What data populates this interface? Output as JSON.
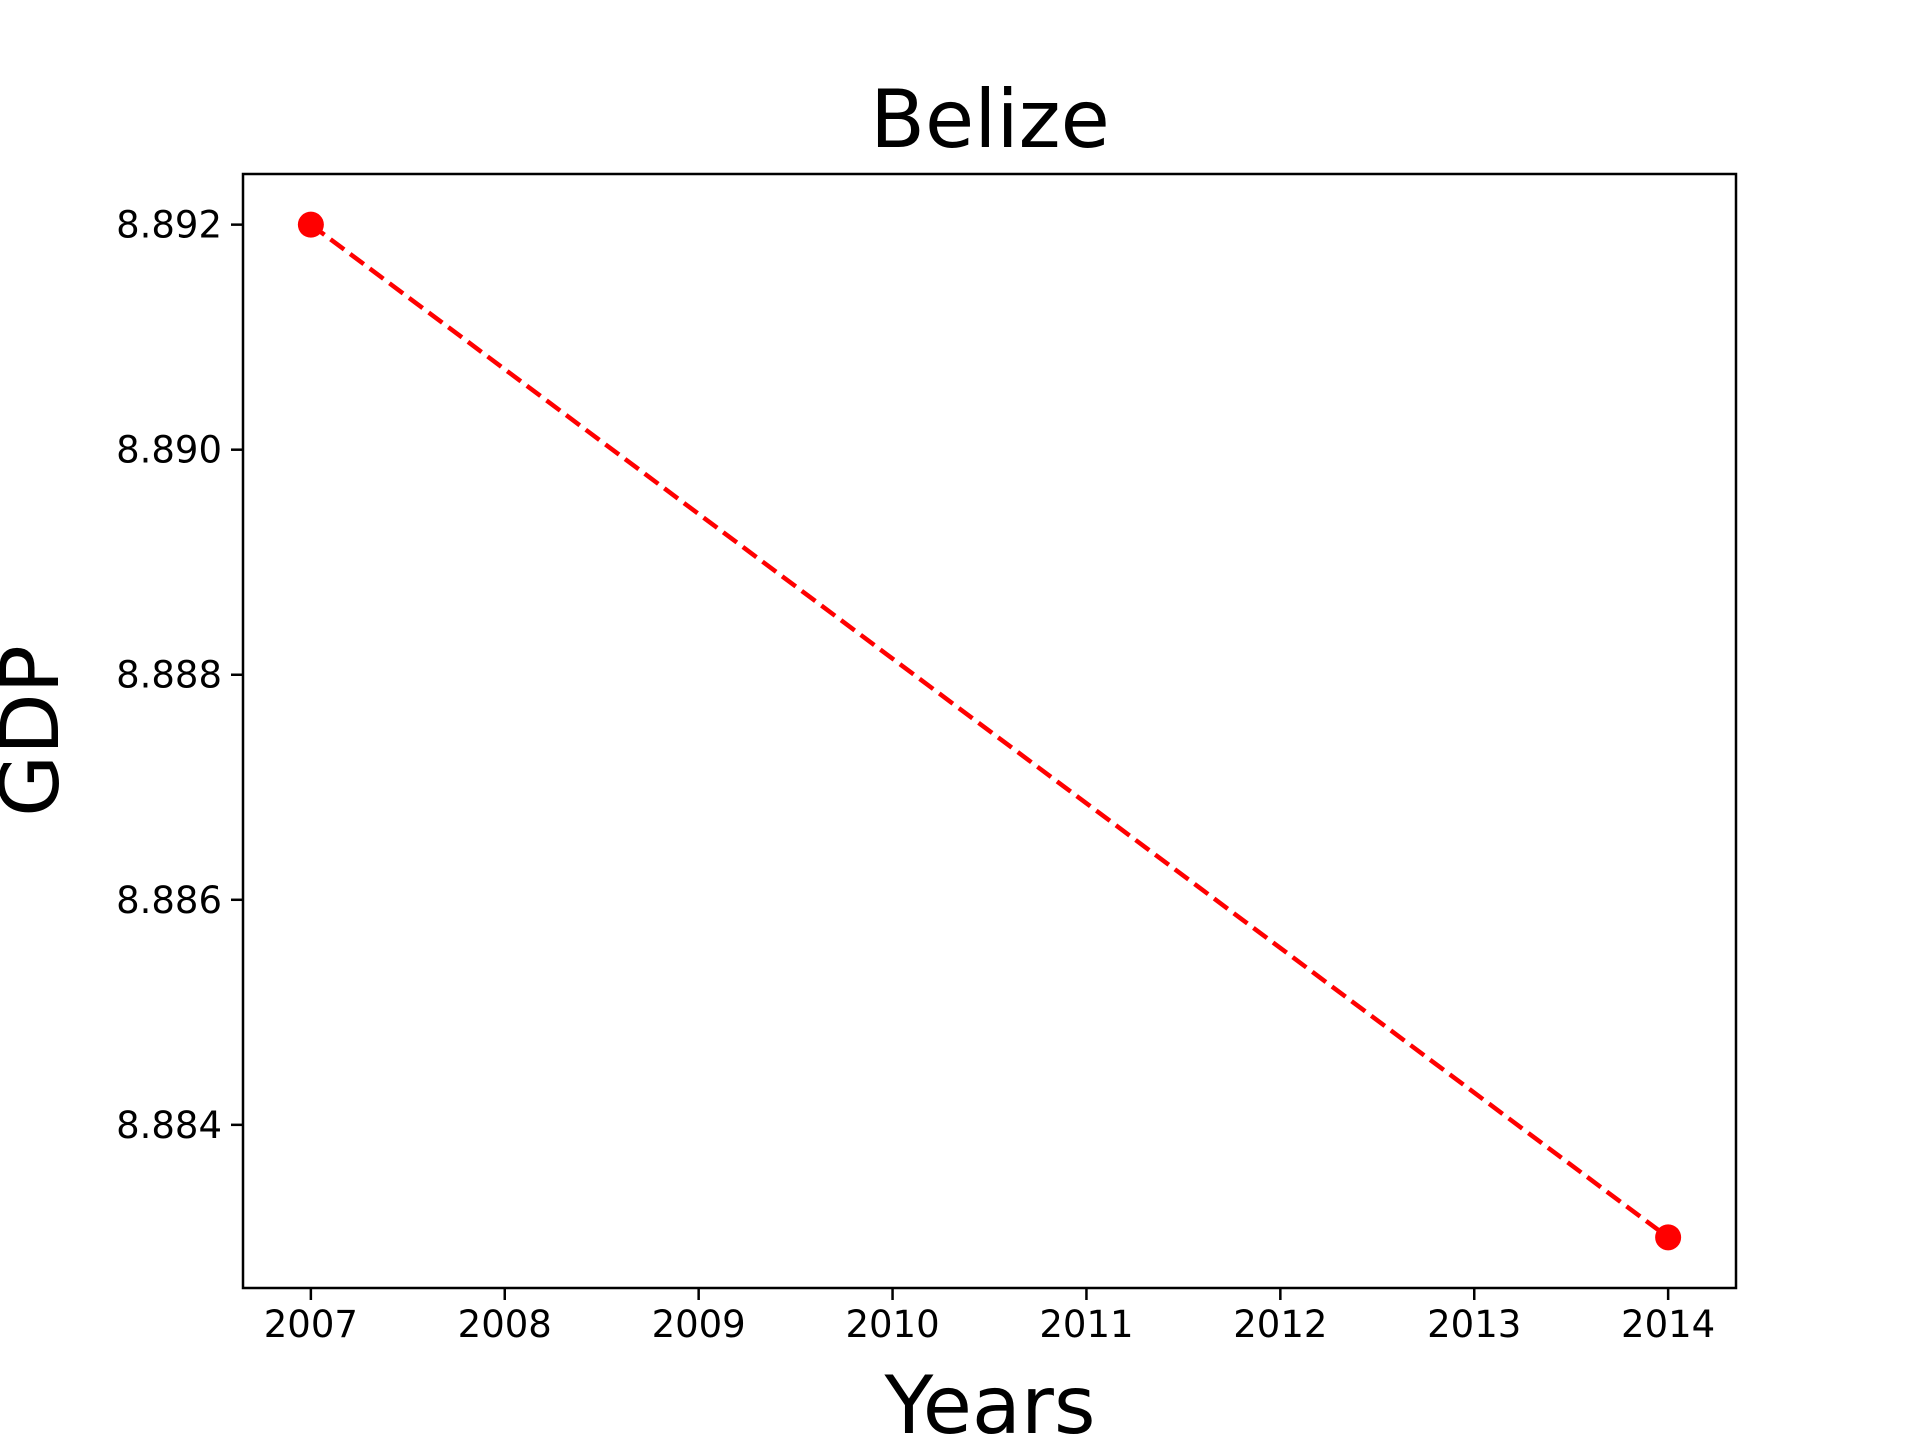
{
  "chart_data": {
    "type": "line",
    "title": "Belize",
    "xlabel": "Years",
    "ylabel": "GDP",
    "x": [
      2007,
      2014
    ],
    "series": [
      {
        "values": [
          8.892,
          8.883
        ],
        "color": "#ff0000",
        "line_style": "dashed",
        "marker": "circle"
      }
    ],
    "xticks": [
      "2007",
      "2008",
      "2009",
      "2010",
      "2011",
      "2012",
      "2013",
      "2014"
    ],
    "yticks": [
      "8.884",
      "8.886",
      "8.888",
      "8.890",
      "8.892"
    ],
    "xlim": [
      2006.65,
      2014.35
    ],
    "ylim": [
      8.88255,
      8.89245
    ],
    "grid": false,
    "legend": "none"
  }
}
